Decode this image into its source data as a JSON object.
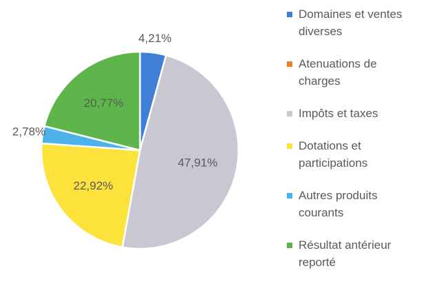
{
  "chart_data": {
    "type": "pie",
    "categories": [
      "Domaines et ventes diverses",
      "Atenuations de charges",
      "Impôts et taxes",
      "Dotations et participations",
      "Autres produits courants",
      "Résultat antérieur reporté"
    ],
    "values": [
      4.21,
      0,
      47.91,
      22.92,
      2.78,
      20.77
    ],
    "value_labels": [
      "4,21%",
      null,
      "47,91%",
      "22,92%",
      "2,78%",
      "20,77%"
    ],
    "colors": [
      "#3f7fd6",
      "#ed7d31",
      "#c8c8d2",
      "#fde23c",
      "#4cb2ea",
      "#5db54b"
    ],
    "legend": "right"
  }
}
